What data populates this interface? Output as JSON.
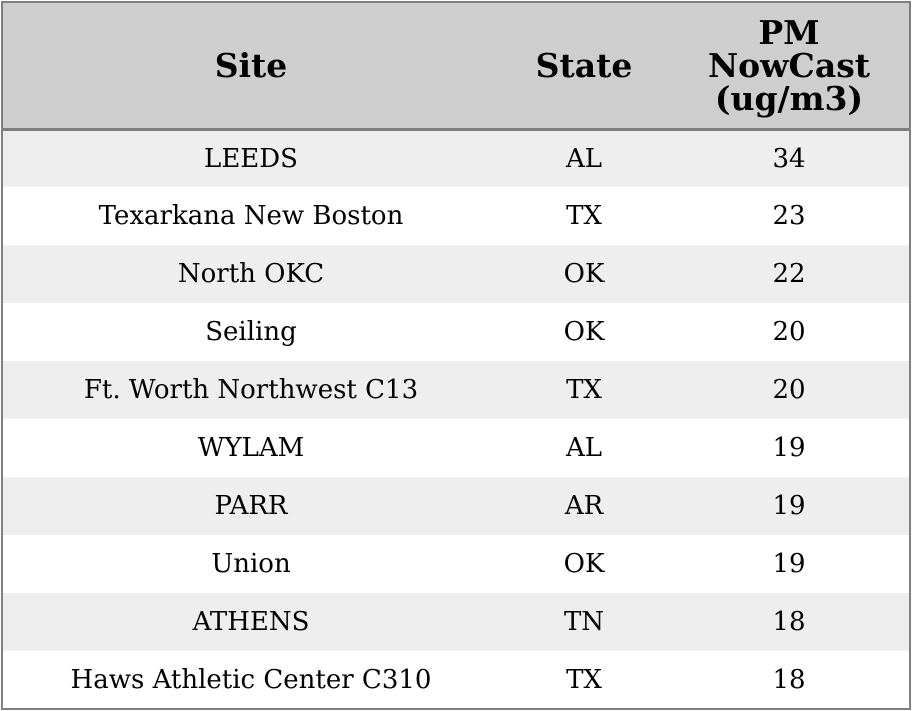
{
  "chart_data": {
    "type": "table",
    "columns": {
      "site": "Site",
      "state": "State",
      "pm_line1": "PM",
      "pm_line2": "NowCast",
      "pm_line3": "(ug/m3)"
    },
    "rows": [
      {
        "site": "LEEDS",
        "state": "AL",
        "pm": "34"
      },
      {
        "site": "Texarkana New Boston",
        "state": "TX",
        "pm": "23"
      },
      {
        "site": "North OKC",
        "state": "OK",
        "pm": "22"
      },
      {
        "site": "Seiling",
        "state": "OK",
        "pm": "20"
      },
      {
        "site": "Ft. Worth Northwest C13",
        "state": "TX",
        "pm": "20"
      },
      {
        "site": "WYLAM",
        "state": "AL",
        "pm": "19"
      },
      {
        "site": "PARR",
        "state": "AR",
        "pm": "19"
      },
      {
        "site": "Union",
        "state": "OK",
        "pm": "19"
      },
      {
        "site": "ATHENS",
        "state": "TN",
        "pm": "18"
      },
      {
        "site": "Haws Athletic Center C310",
        "state": "TX",
        "pm": "18"
      }
    ],
    "header_background": "#cecece",
    "row_stripe_color": "#eeeeee",
    "border_color": "#808080"
  }
}
